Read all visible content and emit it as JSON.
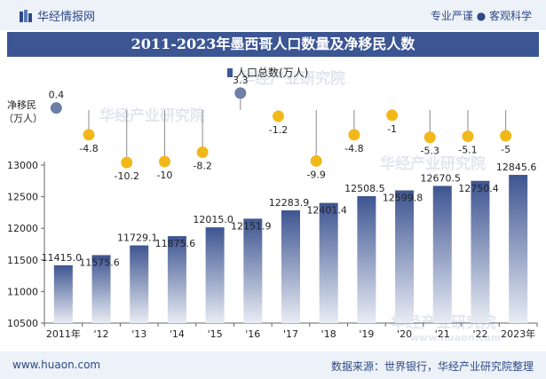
{
  "header": {
    "brand": "华经情报网",
    "slogan": "专业严谨 ● 客观科学"
  },
  "title": "2011-2023年墨西哥人口数量及净移民人数",
  "footer": {
    "url": "www.huaon.com",
    "source": "数据来源：世界银行，华经产业研究院整理"
  },
  "watermark": {
    "cn": "华经产业研究院",
    "url": "www.huaon.com"
  },
  "chart_data": {
    "type": "bar",
    "categories": [
      "2011年",
      "'12",
      "'13",
      "'14",
      "'15",
      "'16",
      "'17",
      "'18",
      "'19",
      "'20",
      "'21",
      "'22",
      "2023年"
    ],
    "series": [
      {
        "name": "人口总数(万人)",
        "values": [
          11415.0,
          11575.6,
          11729.1,
          11875.6,
          12015.0,
          12151.9,
          12283.9,
          12401.4,
          12508.5,
          12599.8,
          12670.5,
          12750.4,
          12845.6
        ]
      },
      {
        "name": "净移民（万人）",
        "values": [
          0.4,
          -4.8,
          -10.2,
          -10,
          -8.2,
          3.3,
          -1.2,
          -9.9,
          -4.8,
          -1,
          -5.3,
          -5.1,
          -5
        ]
      }
    ],
    "population_labels": [
      "11415.0",
      "11575.6",
      "11729.1",
      "11875.6",
      "12015.0",
      "12151.9",
      "12283.9",
      "12401.4",
      "12508.5",
      "12599.8",
      "12670.5",
      "12750.4",
      "12845.6"
    ],
    "migration_labels": [
      "0.4",
      "-4.8",
      "-10.2",
      "-10",
      "-8.2",
      "3.3",
      "-1.2",
      "-9.9",
      "-4.8",
      "-1",
      "-5.3",
      "-5.1",
      "-5"
    ],
    "yticks": [
      "13000",
      "12500",
      "12000",
      "11500",
      "11000",
      "10500"
    ],
    "ylim": [
      10500,
      13000
    ],
    "legend": "人口总数(万人)",
    "legend_position": "top-center",
    "migration_axis_label": [
      "净移民",
      "（万人）"
    ],
    "colors": {
      "bar_top": "#3e5591",
      "bar_bottom": "#e8ecf4",
      "migration_positive": "#6d7ea7",
      "migration_negative": "#f2b81a",
      "stem": "#8a8a8a"
    }
  }
}
